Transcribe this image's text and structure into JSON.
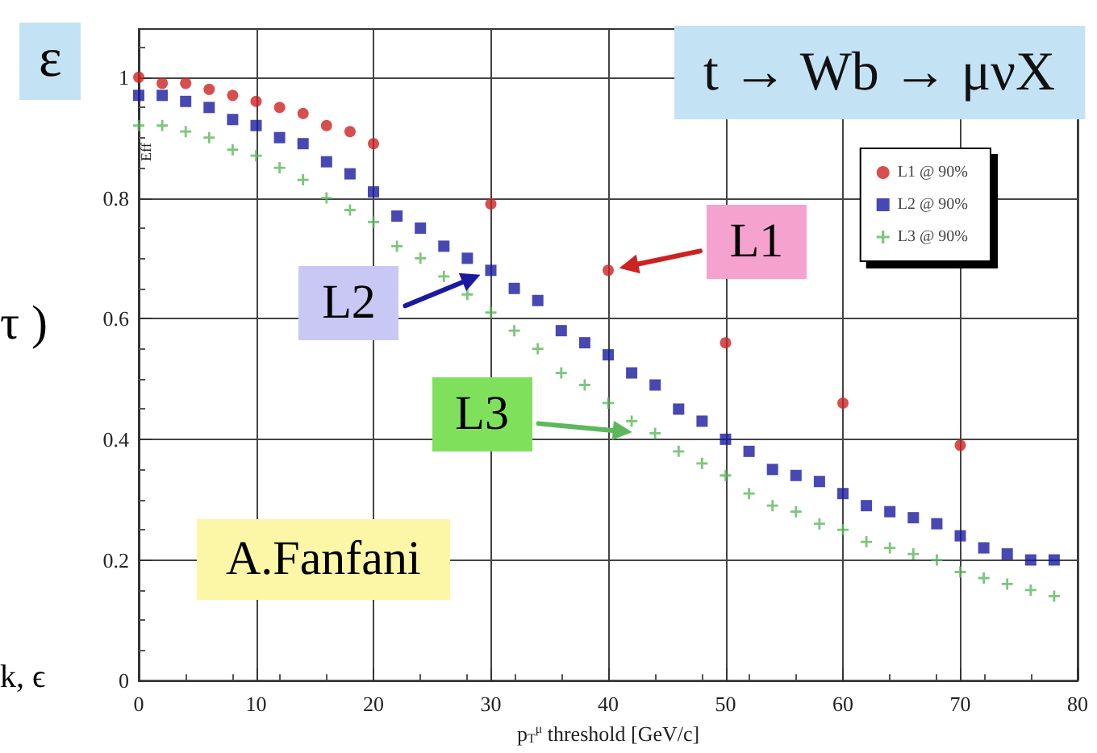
{
  "chart_data": {
    "type": "scatter",
    "title": "t → Wb → μνX",
    "xlabel": "p$_{T}$$^{μ}$ threshold [GeV/c]",
    "ylabel": "Eff",
    "xlim": [
      0,
      80
    ],
    "xticks": [
      0,
      10,
      20,
      30,
      40,
      50,
      60,
      70,
      80
    ],
    "ylim": [
      0,
      1.08
    ],
    "yticks": [
      0,
      0.2,
      0.4,
      0.6,
      0.8,
      1
    ],
    "grid": true,
    "legend": "top right",
    "series": [
      {
        "name": "L1 @ 90%",
        "color": "#cc2222",
        "marker": "circle",
        "x": [
          0,
          2,
          4,
          6,
          8,
          10,
          12,
          14,
          16,
          18,
          20,
          30,
          40,
          50,
          60,
          70
        ],
        "values": [
          1.0,
          0.99,
          0.99,
          0.98,
          0.97,
          0.96,
          0.95,
          0.94,
          0.92,
          0.91,
          0.89,
          0.79,
          0.68,
          0.56,
          0.46,
          0.39
        ]
      },
      {
        "name": "L2 @ 90%",
        "color": "#1a1aa0",
        "marker": "square",
        "x": [
          0,
          2,
          4,
          6,
          8,
          10,
          12,
          14,
          16,
          18,
          20,
          22,
          24,
          26,
          28,
          30,
          32,
          34,
          36,
          38,
          40,
          42,
          44,
          46,
          48,
          50,
          52,
          54,
          56,
          58,
          60,
          62,
          64,
          66,
          68,
          70,
          72,
          74,
          76,
          78
        ],
        "values": [
          0.97,
          0.97,
          0.96,
          0.95,
          0.93,
          0.92,
          0.9,
          0.89,
          0.86,
          0.84,
          0.81,
          0.77,
          0.75,
          0.72,
          0.7,
          0.68,
          0.65,
          0.63,
          0.58,
          0.56,
          0.54,
          0.51,
          0.49,
          0.45,
          0.43,
          0.4,
          0.38,
          0.35,
          0.34,
          0.33,
          0.31,
          0.29,
          0.28,
          0.27,
          0.26,
          0.24,
          0.22,
          0.21,
          0.2,
          0.2
        ]
      },
      {
        "name": "L3 @ 90%",
        "color": "#5cb85c",
        "marker": "cross",
        "x": [
          0,
          2,
          4,
          6,
          8,
          10,
          12,
          14,
          16,
          18,
          20,
          22,
          24,
          26,
          28,
          30,
          32,
          34,
          36,
          38,
          40,
          42,
          44,
          46,
          48,
          50,
          52,
          54,
          56,
          58,
          60,
          62,
          64,
          66,
          68,
          70,
          72,
          74,
          76,
          78
        ],
        "values": [
          0.92,
          0.92,
          0.91,
          0.9,
          0.88,
          0.87,
          0.85,
          0.83,
          0.8,
          0.78,
          0.76,
          0.72,
          0.7,
          0.67,
          0.64,
          0.61,
          0.58,
          0.55,
          0.51,
          0.49,
          0.46,
          0.43,
          0.41,
          0.38,
          0.36,
          0.34,
          0.31,
          0.29,
          0.28,
          0.26,
          0.25,
          0.23,
          0.22,
          0.21,
          0.2,
          0.18,
          0.17,
          0.16,
          0.15,
          0.14
        ]
      }
    ],
    "annotations": [
      {
        "text": "L1",
        "x": 40,
        "y": 0.68
      },
      {
        "text": "L2",
        "x": 30,
        "y": 0.68
      },
      {
        "text": "L3",
        "x": 43,
        "y": 0.41
      },
      "ε",
      "A.Fanfani",
      "τ )",
      "k, ϵ"
    ]
  }
}
